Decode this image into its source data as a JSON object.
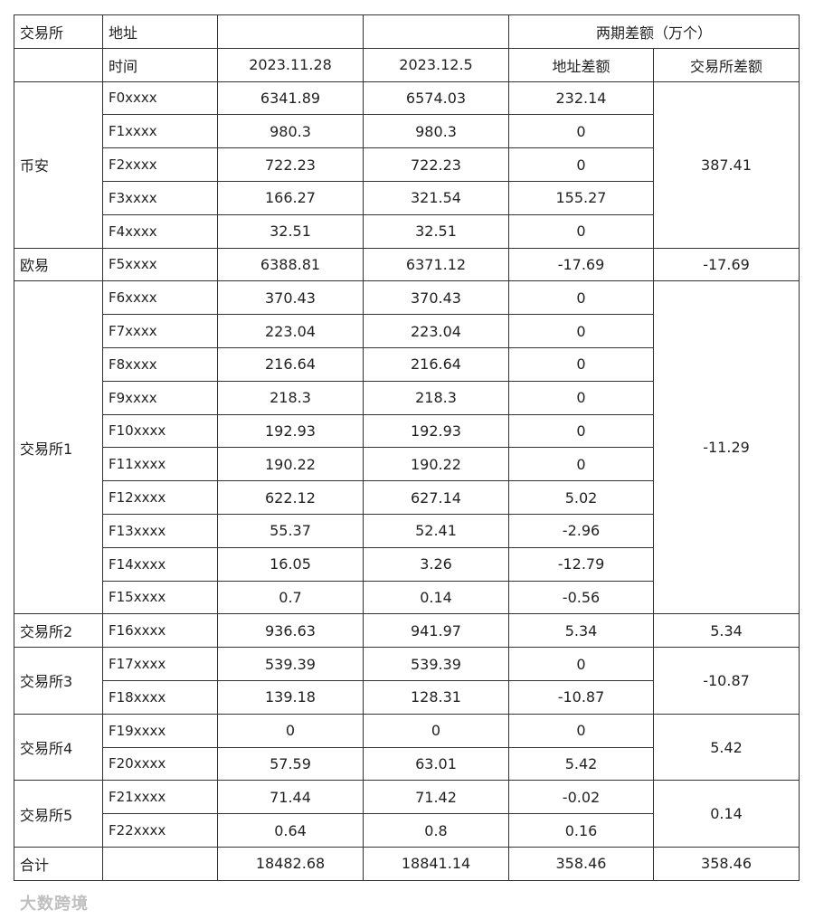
{
  "header": {
    "row1": {
      "exchange": "交易所",
      "address": "地址",
      "diff_group": "两期差额（万个）"
    },
    "row2": {
      "time": "时间",
      "date1": "2023.11.28",
      "date2": "2023.12.5",
      "addr_diff": "地址差额",
      "ex_diff": "交易所差额"
    }
  },
  "groups": [
    {
      "name": "币安",
      "ex_diff": "387.41",
      "rows": [
        {
          "addr": "F0xxxx",
          "v1": "6341.89",
          "v2": "6574.03",
          "diff": "232.14"
        },
        {
          "addr": "F1xxxx",
          "v1": "980.3",
          "v2": "980.3",
          "diff": "0"
        },
        {
          "addr": "F2xxxx",
          "v1": "722.23",
          "v2": "722.23",
          "diff": "0"
        },
        {
          "addr": "F3xxxx",
          "v1": "166.27",
          "v2": "321.54",
          "diff": "155.27"
        },
        {
          "addr": "F4xxxx",
          "v1": "32.51",
          "v2": "32.51",
          "diff": "0"
        }
      ]
    },
    {
      "name": "欧易",
      "ex_diff": "-17.69",
      "rows": [
        {
          "addr": "F5xxxx",
          "v1": "6388.81",
          "v2": "6371.12",
          "diff": "-17.69"
        }
      ]
    },
    {
      "name": "交易所1",
      "ex_diff": "-11.29",
      "rows": [
        {
          "addr": "F6xxxx",
          "v1": "370.43",
          "v2": "370.43",
          "diff": "0"
        },
        {
          "addr": "F7xxxx",
          "v1": "223.04",
          "v2": "223.04",
          "diff": "0"
        },
        {
          "addr": "F8xxxx",
          "v1": "216.64",
          "v2": "216.64",
          "diff": "0"
        },
        {
          "addr": "F9xxxx",
          "v1": "218.3",
          "v2": "218.3",
          "diff": "0"
        },
        {
          "addr": "F10xxxx",
          "v1": "192.93",
          "v2": "192.93",
          "diff": "0"
        },
        {
          "addr": "F11xxxx",
          "v1": "190.22",
          "v2": "190.22",
          "diff": "0"
        },
        {
          "addr": "F12xxxx",
          "v1": "622.12",
          "v2": "627.14",
          "diff": "5.02"
        },
        {
          "addr": "F13xxxx",
          "v1": "55.37",
          "v2": "52.41",
          "diff": "-2.96"
        },
        {
          "addr": "F14xxxx",
          "v1": "16.05",
          "v2": "3.26",
          "diff": "-12.79"
        },
        {
          "addr": "F15xxxx",
          "v1": "0.7",
          "v2": "0.14",
          "diff": "-0.56"
        }
      ]
    },
    {
      "name": "交易所2",
      "ex_diff": "5.34",
      "rows": [
        {
          "addr": "F16xxxx",
          "v1": "936.63",
          "v2": "941.97",
          "diff": "5.34"
        }
      ]
    },
    {
      "name": "交易所3",
      "ex_diff": "-10.87",
      "rows": [
        {
          "addr": "F17xxxx",
          "v1": "539.39",
          "v2": "539.39",
          "diff": "0"
        },
        {
          "addr": "F18xxxx",
          "v1": "139.18",
          "v2": "128.31",
          "diff": "-10.87"
        }
      ]
    },
    {
      "name": "交易所4",
      "ex_diff": "5.42",
      "rows": [
        {
          "addr": "F19xxxx",
          "v1": "0",
          "v2": "0",
          "diff": "0"
        },
        {
          "addr": "F20xxxx",
          "v1": "57.59",
          "v2": "63.01",
          "diff": "5.42"
        }
      ]
    },
    {
      "name": "交易所5",
      "ex_diff": "0.14",
      "rows": [
        {
          "addr": "F21xxxx",
          "v1": "71.44",
          "v2": "71.42",
          "diff": "-0.02"
        },
        {
          "addr": "F22xxxx",
          "v1": "0.64",
          "v2": "0.8",
          "diff": "0.16"
        }
      ]
    }
  ],
  "total": {
    "label": "合计",
    "v1": "18482.68",
    "v2": "18841.14",
    "diff": "358.46",
    "ex_diff": "358.46"
  },
  "watermark": "大数跨境"
}
